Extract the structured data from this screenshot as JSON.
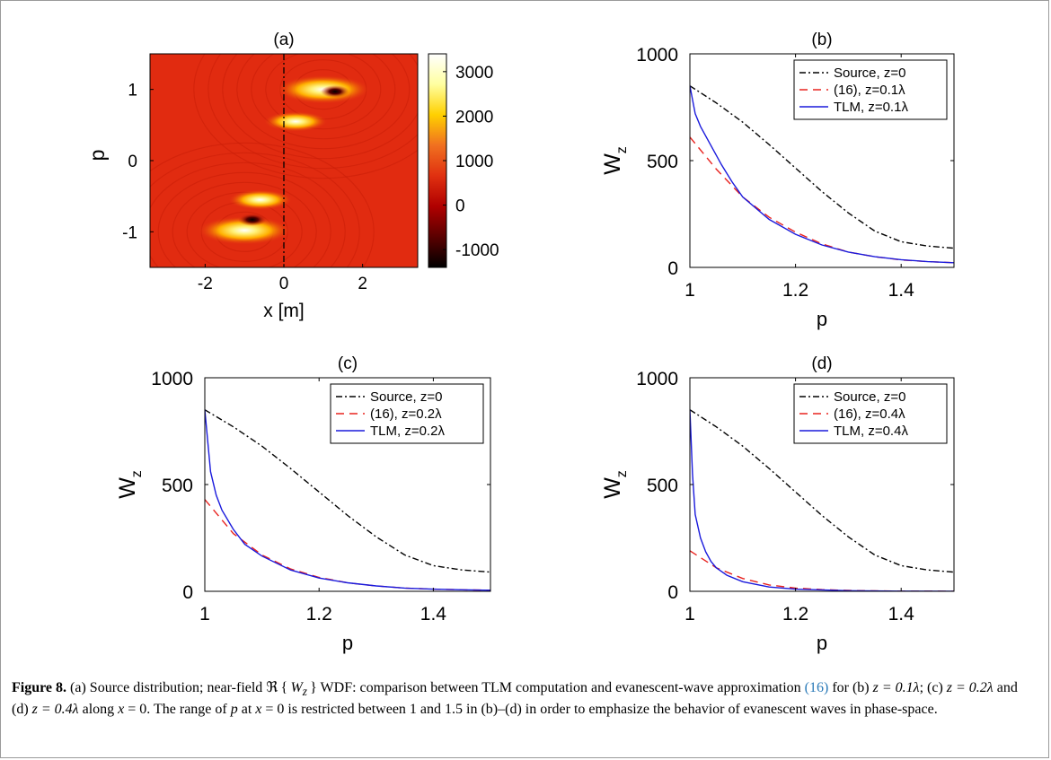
{
  "chart_data": [
    {
      "panel": "(a)",
      "type": "heatmap",
      "xlabel": "x   [m]",
      "ylabel": "p",
      "xlim": [
        -3.4,
        3.4
      ],
      "ylim": [
        -1.5,
        1.5
      ],
      "xticks": [
        -2,
        0,
        2
      ],
      "xtick_labels": [
        "-2",
        "0",
        "2"
      ],
      "yticks": [
        1,
        0,
        -1
      ],
      "ytick_labels": [
        "1",
        "0",
        "-1"
      ],
      "colorbar": {
        "range": [
          -1400,
          3400
        ],
        "ticks": [
          3000,
          2000,
          1000,
          0,
          -1000
        ],
        "tick_labels": [
          "3000",
          "2000",
          "1000",
          "0",
          "-1000"
        ],
        "colors": [
          "#000000",
          "#5a0000",
          "#b00000",
          "#e03010",
          "#f07020",
          "#ffd000",
          "#ffffa0",
          "#ffffff"
        ]
      },
      "background_color": "#e12b10",
      "dash_line_x": 0,
      "hotspots": [
        {
          "x": 1.0,
          "p": 1.0,
          "sign": 1,
          "value": 3000
        },
        {
          "x": 0.3,
          "p": 0.55,
          "sign": 1,
          "value": 1600
        },
        {
          "x": -1.0,
          "p": -0.98,
          "sign": 1,
          "value": 3000
        },
        {
          "x": -0.6,
          "p": -0.55,
          "sign": 1,
          "value": 1600
        },
        {
          "x": 1.3,
          "p": 0.97,
          "sign": -1,
          "value": -1000
        },
        {
          "x": -0.8,
          "p": -0.83,
          "sign": -1,
          "value": -1000
        }
      ]
    },
    {
      "panel": "(b)",
      "type": "line",
      "xlabel": "p",
      "ylabel": "W",
      "ylabel_sub": "z",
      "xlim": [
        1,
        1.5
      ],
      "ylim": [
        0,
        1000
      ],
      "xticks": [
        1,
        1.2,
        1.4
      ],
      "xtick_labels": [
        "1",
        "1.2",
        "1.4"
      ],
      "yticks": [
        0,
        500,
        1000
      ],
      "ytick_labels": [
        "0",
        "500",
        "1000"
      ],
      "legend_placement": "top-right",
      "series": [
        {
          "name": "Source, z=0",
          "color": "#000000",
          "dash": "dashdot",
          "x": [
            1.0,
            1.05,
            1.1,
            1.15,
            1.2,
            1.25,
            1.3,
            1.35,
            1.4,
            1.45,
            1.5
          ],
          "y": [
            850,
            770,
            680,
            575,
            465,
            355,
            255,
            170,
            120,
            100,
            90
          ]
        },
        {
          "name": "(16), z=0.1λ",
          "color": "#e8231f",
          "dash": "dash",
          "x": [
            1.0,
            1.05,
            1.1,
            1.15,
            1.2,
            1.25,
            1.3,
            1.35,
            1.4,
            1.45,
            1.5
          ],
          "y": [
            610,
            460,
            330,
            235,
            165,
            110,
            72,
            50,
            35,
            27,
            22
          ]
        },
        {
          "name": "TLM, z=0.1λ",
          "color": "#1a1adc",
          "dash": "solid",
          "x": [
            1.0,
            1.01,
            1.02,
            1.04,
            1.06,
            1.08,
            1.1,
            1.15,
            1.2,
            1.25,
            1.3,
            1.35,
            1.4,
            1.45,
            1.5
          ],
          "y": [
            850,
            720,
            660,
            570,
            480,
            400,
            330,
            225,
            155,
            105,
            72,
            50,
            36,
            27,
            22
          ]
        }
      ]
    },
    {
      "panel": "(c)",
      "type": "line",
      "xlabel": "p",
      "ylabel": "W",
      "ylabel_sub": "z",
      "xlim": [
        1,
        1.5
      ],
      "ylim": [
        0,
        1000
      ],
      "xticks": [
        1,
        1.2,
        1.4
      ],
      "xtick_labels": [
        "1",
        "1.2",
        "1.4"
      ],
      "yticks": [
        0,
        500,
        1000
      ],
      "ytick_labels": [
        "0",
        "500",
        "1000"
      ],
      "legend_placement": "top-right",
      "series": [
        {
          "name": "Source, z=0",
          "color": "#000000",
          "dash": "dashdot",
          "x": [
            1.0,
            1.05,
            1.1,
            1.15,
            1.2,
            1.25,
            1.3,
            1.35,
            1.4,
            1.45,
            1.5
          ],
          "y": [
            850,
            770,
            680,
            575,
            465,
            355,
            255,
            170,
            120,
            100,
            90
          ]
        },
        {
          "name": "(16), z=0.2λ",
          "color": "#e8231f",
          "dash": "dash",
          "x": [
            1.0,
            1.05,
            1.1,
            1.15,
            1.2,
            1.25,
            1.3,
            1.35,
            1.4,
            1.45,
            1.5
          ],
          "y": [
            430,
            270,
            170,
            105,
            65,
            40,
            25,
            15,
            10,
            7,
            5
          ]
        },
        {
          "name": "TLM, z=0.2λ",
          "color": "#1a1adc",
          "dash": "solid",
          "x": [
            1.0,
            1.01,
            1.02,
            1.03,
            1.05,
            1.07,
            1.1,
            1.15,
            1.2,
            1.25,
            1.3,
            1.35,
            1.4,
            1.45,
            1.5
          ],
          "y": [
            850,
            560,
            450,
            380,
            290,
            220,
            165,
            100,
            62,
            40,
            25,
            15,
            10,
            7,
            5
          ]
        }
      ]
    },
    {
      "panel": "(d)",
      "type": "line",
      "xlabel": "p",
      "ylabel": "W",
      "ylabel_sub": "z",
      "xlim": [
        1,
        1.5
      ],
      "ylim": [
        0,
        1000
      ],
      "xticks": [
        1,
        1.2,
        1.4
      ],
      "xtick_labels": [
        "1",
        "1.2",
        "1.4"
      ],
      "yticks": [
        0,
        500,
        1000
      ],
      "ytick_labels": [
        "0",
        "500",
        "1000"
      ],
      "legend_placement": "top-right",
      "series": [
        {
          "name": "Source, z=0",
          "color": "#000000",
          "dash": "dashdot",
          "x": [
            1.0,
            1.05,
            1.1,
            1.15,
            1.2,
            1.25,
            1.3,
            1.35,
            1.4,
            1.45,
            1.5
          ],
          "y": [
            850,
            770,
            680,
            575,
            465,
            355,
            255,
            170,
            120,
            100,
            90
          ]
        },
        {
          "name": "(16), z=0.4λ",
          "color": "#e8231f",
          "dash": "dash",
          "x": [
            1.0,
            1.05,
            1.1,
            1.15,
            1.2,
            1.25,
            1.3,
            1.35,
            1.4,
            1.45,
            1.5
          ],
          "y": [
            190,
            110,
            60,
            30,
            15,
            8,
            4,
            2,
            1,
            1,
            0
          ]
        },
        {
          "name": "TLM, z=0.4λ",
          "color": "#1a1adc",
          "dash": "solid",
          "x": [
            1.0,
            1.005,
            1.01,
            1.02,
            1.03,
            1.04,
            1.05,
            1.07,
            1.1,
            1.15,
            1.2,
            1.3,
            1.4,
            1.5
          ],
          "y": [
            850,
            550,
            360,
            250,
            185,
            140,
            110,
            75,
            45,
            20,
            10,
            3,
            1,
            0
          ]
        }
      ]
    }
  ],
  "caption": {
    "label": "Figure 8.",
    "part1": "(a) Source distribution; near-field ",
    "re_symbol": "ℜ",
    "brace_open": "{",
    "w_var": "W",
    "w_sub": "z",
    "brace_close": "}",
    "part2": " WDF: comparison between TLM computation and evanescent-wave approximation ",
    "ref": "(16)",
    "part3": " for (b) ",
    "eq_b": "z = 0.1λ",
    "part4": "; (c) ",
    "eq_c": "z = 0.2λ",
    "part5": " and (d) ",
    "eq_d": "z = 0.4λ",
    "part6": " along ",
    "eq_x": "x",
    "part7": " = 0. The range of ",
    "eq_p": "p",
    "part8": " at ",
    "eq_x2": "x",
    "part9": " = 0 is restricted between 1 and 1.5 in (b)–(d) in order to emphasize the behavior of evanescent waves in phase-space."
  }
}
